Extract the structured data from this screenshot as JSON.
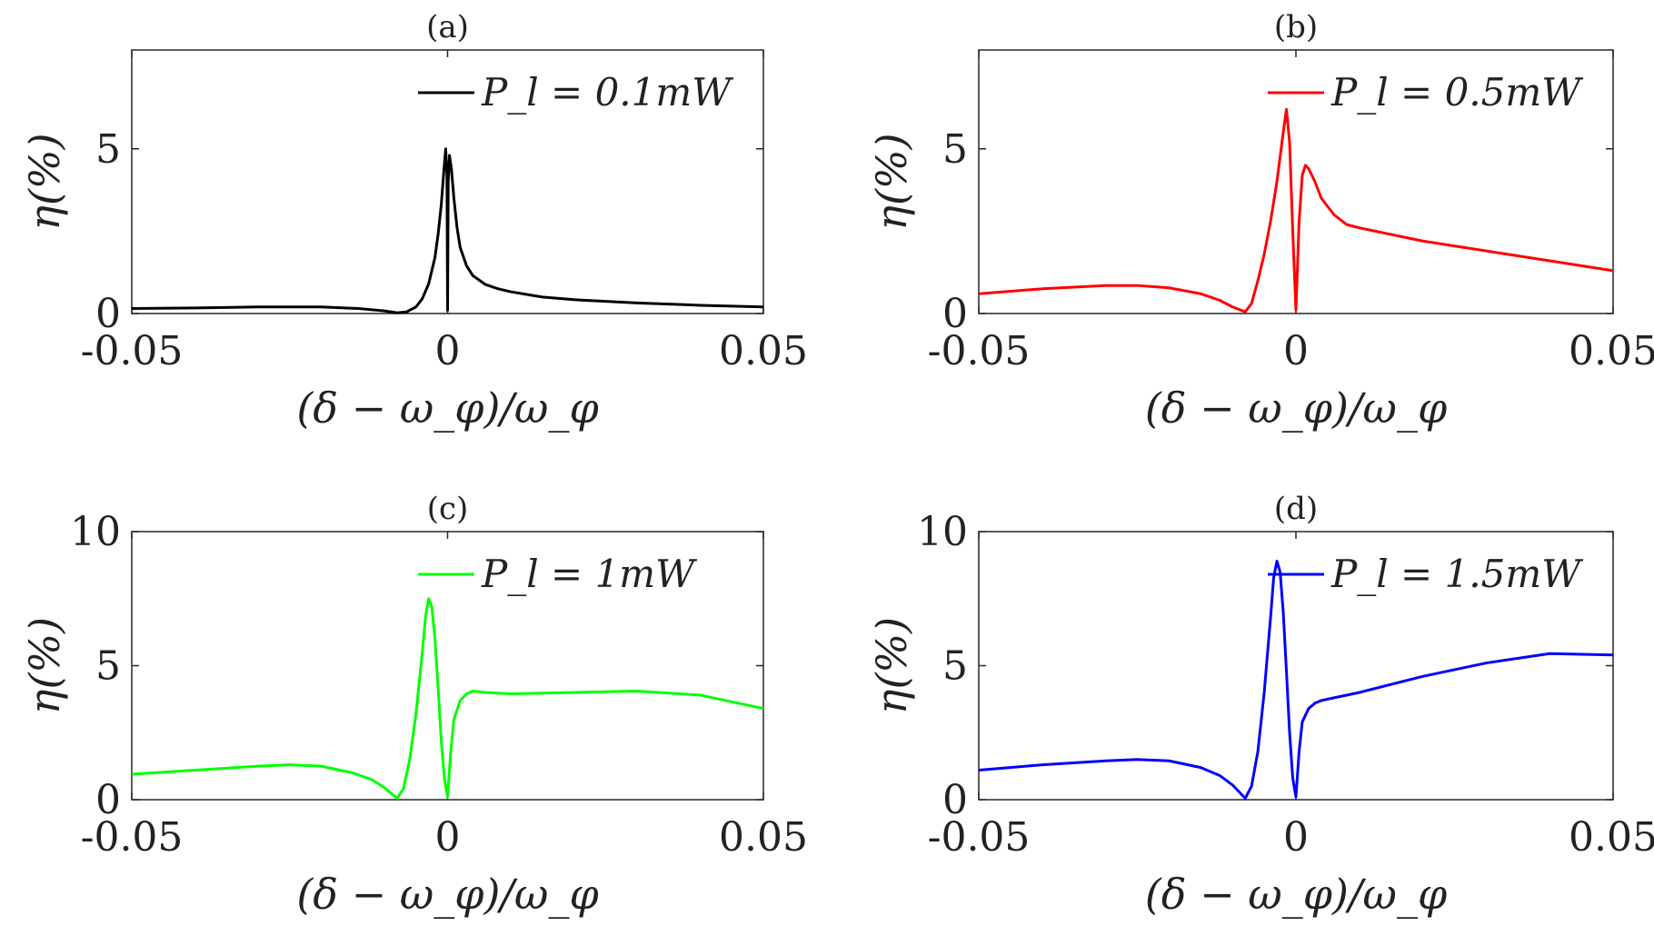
{
  "chart_data": [
    {
      "type": "line",
      "title": "(a)",
      "xlabel": "(δ − ω_φ)/ω_φ",
      "ylabel": "η(%)",
      "xlim": [
        -0.05,
        0.05
      ],
      "ylim": [
        0,
        8
      ],
      "xticks": [
        "-0.05",
        "0",
        "0.05"
      ],
      "yticks": [
        "0",
        "5"
      ],
      "legend_position": "top-right",
      "series": [
        {
          "name": "P_l = 0.1mW",
          "color": "#000000",
          "x": [
            -0.05,
            -0.04,
            -0.03,
            -0.02,
            -0.014,
            -0.01,
            -0.008,
            -0.0065,
            -0.005,
            -0.004,
            -0.003,
            -0.002,
            -0.0015,
            -0.001,
            -0.0006,
            -0.0003,
            -0.0001,
            0,
            0.0001,
            0.0003,
            0.0006,
            0.001,
            0.0015,
            0.002,
            0.003,
            0.004,
            0.006,
            0.008,
            0.01,
            0.015,
            0.02,
            0.03,
            0.04,
            0.05
          ],
          "y": [
            0.15,
            0.17,
            0.2,
            0.2,
            0.15,
            0.08,
            0.02,
            0.05,
            0.2,
            0.45,
            0.9,
            1.7,
            2.4,
            3.3,
            4.3,
            5.0,
            4.2,
            0.1,
            4.0,
            4.8,
            4.4,
            3.5,
            2.6,
            2.0,
            1.45,
            1.15,
            0.88,
            0.75,
            0.66,
            0.5,
            0.42,
            0.32,
            0.25,
            0.2
          ]
        }
      ]
    },
    {
      "type": "line",
      "title": "(b)",
      "xlabel": "(δ − ω_φ)/ω_φ",
      "ylabel": "η(%)",
      "xlim": [
        -0.05,
        0.05
      ],
      "ylim": [
        0,
        8
      ],
      "xticks": [
        "-0.05",
        "0",
        "0.05"
      ],
      "yticks": [
        "0",
        "5"
      ],
      "legend_position": "top-right",
      "series": [
        {
          "name": "P_l = 0.5mW",
          "color": "#ff0000",
          "x": [
            -0.05,
            -0.04,
            -0.03,
            -0.025,
            -0.02,
            -0.015,
            -0.012,
            -0.01,
            -0.008,
            -0.007,
            -0.006,
            -0.005,
            -0.004,
            -0.003,
            -0.002,
            -0.0015,
            -0.001,
            -0.0005,
            0,
            0.0005,
            0.001,
            0.0015,
            0.002,
            0.003,
            0.004,
            0.006,
            0.008,
            0.01,
            0.015,
            0.02,
            0.03,
            0.04,
            0.05
          ],
          "y": [
            0.6,
            0.75,
            0.85,
            0.85,
            0.78,
            0.6,
            0.4,
            0.2,
            0.05,
            0.3,
            1.0,
            1.8,
            2.8,
            4.0,
            5.5,
            6.2,
            5.2,
            2.5,
            0.1,
            2.8,
            4.2,
            4.5,
            4.4,
            4.0,
            3.5,
            3.0,
            2.7,
            2.6,
            2.4,
            2.2,
            1.9,
            1.6,
            1.3
          ]
        }
      ]
    },
    {
      "type": "line",
      "title": "(c)",
      "xlabel": "(δ − ω_φ)/ω_φ",
      "ylabel": "η(%)",
      "xlim": [
        -0.05,
        0.05
      ],
      "ylim": [
        0,
        10
      ],
      "xticks": [
        "-0.05",
        "0",
        "0.05"
      ],
      "yticks": [
        "0",
        "5",
        "10"
      ],
      "legend_position": "top-right",
      "series": [
        {
          "name": "P_l = 1mW",
          "color": "#00ff00",
          "x": [
            -0.05,
            -0.04,
            -0.03,
            -0.025,
            -0.02,
            -0.015,
            -0.012,
            -0.01,
            -0.009,
            -0.008,
            -0.007,
            -0.006,
            -0.005,
            -0.004,
            -0.0035,
            -0.003,
            -0.0025,
            -0.002,
            -0.0015,
            -0.001,
            -0.0005,
            0,
            0.0005,
            0.001,
            0.002,
            0.003,
            0.004,
            0.006,
            0.01,
            0.02,
            0.03,
            0.04,
            0.05
          ],
          "y": [
            0.95,
            1.1,
            1.25,
            1.3,
            1.25,
            1.0,
            0.75,
            0.45,
            0.25,
            0.05,
            0.4,
            1.5,
            3.2,
            5.5,
            6.8,
            7.5,
            7.2,
            6.0,
            4.2,
            2.2,
            0.8,
            0.1,
            1.8,
            3.0,
            3.7,
            3.95,
            4.05,
            4.0,
            3.95,
            4.0,
            4.05,
            3.9,
            3.4
          ]
        }
      ]
    },
    {
      "type": "line",
      "title": "(d)",
      "xlabel": "(δ − ω_φ)/ω_φ",
      "ylabel": "η(%)",
      "xlim": [
        -0.05,
        0.05
      ],
      "ylim": [
        0,
        10
      ],
      "xticks": [
        "-0.05",
        "0",
        "0.05"
      ],
      "yticks": [
        "0",
        "5",
        "10"
      ],
      "legend_position": "top-right",
      "series": [
        {
          "name": "P_l = 1.5mW",
          "color": "#0000ff",
          "x": [
            -0.05,
            -0.04,
            -0.03,
            -0.025,
            -0.02,
            -0.015,
            -0.012,
            -0.01,
            -0.009,
            -0.008,
            -0.007,
            -0.006,
            -0.005,
            -0.004,
            -0.0035,
            -0.003,
            -0.0025,
            -0.002,
            -0.0015,
            -0.001,
            -0.0005,
            0,
            0.0005,
            0.001,
            0.002,
            0.003,
            0.004,
            0.006,
            0.01,
            0.02,
            0.03,
            0.04,
            0.05
          ],
          "y": [
            1.1,
            1.3,
            1.45,
            1.5,
            1.45,
            1.2,
            0.9,
            0.55,
            0.3,
            0.05,
            0.5,
            1.8,
            4.0,
            6.8,
            8.3,
            8.9,
            8.5,
            7.0,
            4.8,
            2.5,
            0.8,
            0.1,
            1.8,
            2.9,
            3.4,
            3.6,
            3.7,
            3.8,
            4.0,
            4.6,
            5.1,
            5.45,
            5.4
          ]
        }
      ]
    }
  ]
}
